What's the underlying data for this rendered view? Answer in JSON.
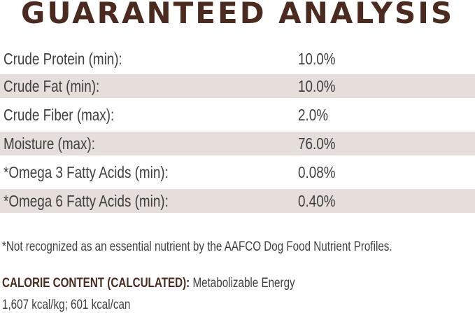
{
  "title": "GUARANTEED ANALYSIS",
  "rows": [
    {
      "label": "Crude Protein (min):",
      "value": "10.0%"
    },
    {
      "label": "Crude Fat (min):",
      "value": "10.0%"
    },
    {
      "label": "Crude Fiber (max):",
      "value": "2.0%"
    },
    {
      "label": "Moisture (max):",
      "value": "76.0%"
    },
    {
      "label": "*Omega 3 Fatty Acids (min):",
      "value": "0.08%"
    },
    {
      "label": "*Omega 6 Fatty Acids (min):",
      "value": "0.40%"
    }
  ],
  "footnote": "*Not recognized as an essential nutrient by the AAFCO Dog Food Nutrient Profiles.",
  "calorie": {
    "heading": "CALORIE CONTENT (CALCULATED):",
    "text": "Metabolizable Energy",
    "values": "1,607 kcal/kg; 601 kcal/can"
  },
  "colors": {
    "title": "#4b2b1f",
    "row_shade": "#e5dedb",
    "text": "#3f3f3f"
  }
}
